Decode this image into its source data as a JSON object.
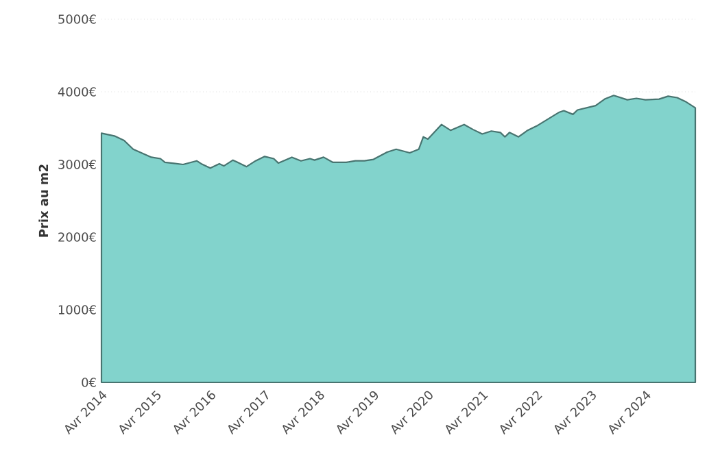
{
  "chart_data": {
    "type": "area",
    "ylabel": "Prix au m2",
    "x": [
      "2014-04",
      "2014-07",
      "2014-09",
      "2014-11",
      "2015-03",
      "2015-05",
      "2015-06",
      "2015-10",
      "2016-01",
      "2016-02",
      "2016-04",
      "2016-06",
      "2016-07",
      "2016-09",
      "2016-10",
      "2016-12",
      "2017-02",
      "2017-04",
      "2017-06",
      "2017-07",
      "2017-10",
      "2017-12",
      "2018-02",
      "2018-03",
      "2018-05",
      "2018-07",
      "2018-10",
      "2018-12",
      "2019-02",
      "2019-04",
      "2019-07",
      "2019-09",
      "2019-12",
      "2020-02",
      "2020-03",
      "2020-04",
      "2020-07",
      "2020-09",
      "2020-12",
      "2021-02",
      "2021-04",
      "2021-06",
      "2021-08",
      "2021-09",
      "2021-10",
      "2021-12",
      "2022-02",
      "2022-04",
      "2022-09",
      "2022-10",
      "2022-12",
      "2023-01",
      "2023-05",
      "2023-07",
      "2023-09",
      "2023-12",
      "2024-02",
      "2024-04",
      "2024-07",
      "2024-09",
      "2024-11",
      "2025-01",
      "2025-03"
    ],
    "series": [
      {
        "color": "#82d3cc",
        "values": [
          3430,
          3390,
          3330,
          3210,
          3100,
          3080,
          3030,
          3000,
          3050,
          3010,
          2950,
          3010,
          2980,
          3060,
          3030,
          2970,
          3050,
          3110,
          3080,
          3020,
          3100,
          3050,
          3080,
          3060,
          3100,
          3030,
          3030,
          3050,
          3050,
          3070,
          3170,
          3210,
          3160,
          3210,
          3380,
          3350,
          3550,
          3470,
          3550,
          3480,
          3420,
          3460,
          3440,
          3380,
          3440,
          3380,
          3470,
          3530,
          3720,
          3740,
          3690,
          3750,
          3810,
          3900,
          3950,
          3890,
          3910,
          3890,
          3900,
          3940,
          3920,
          3860,
          3780
        ]
      }
    ],
    "xlim": [
      "2014-04",
      "2025-03"
    ],
    "xticks": [
      {
        "value": "2014-04",
        "label": "Avr 2014"
      },
      {
        "value": "2015-04",
        "label": "Avr 2015"
      },
      {
        "value": "2016-04",
        "label": "Avr 2016"
      },
      {
        "value": "2017-04",
        "label": "Avr 2017"
      },
      {
        "value": "2018-04",
        "label": "Avr 2018"
      },
      {
        "value": "2019-04",
        "label": "Avr 2019"
      },
      {
        "value": "2020-04",
        "label": "Avr 2020"
      },
      {
        "value": "2021-04",
        "label": "Avr 2021"
      },
      {
        "value": "2022-04",
        "label": "Avr 2022"
      },
      {
        "value": "2023-04",
        "label": "Avr 2023"
      },
      {
        "value": "2024-04",
        "label": "Avr 2024"
      }
    ],
    "ylim": [
      0,
      5000
    ],
    "yticks": [
      {
        "value": 0,
        "label": "0€"
      },
      {
        "value": 1000,
        "label": "1000€"
      },
      {
        "value": 2000,
        "label": "2000€"
      },
      {
        "value": 3000,
        "label": "3000€"
      },
      {
        "value": 4000,
        "label": "4000€"
      },
      {
        "value": 5000,
        "label": "5000€"
      }
    ],
    "grid": "y"
  }
}
